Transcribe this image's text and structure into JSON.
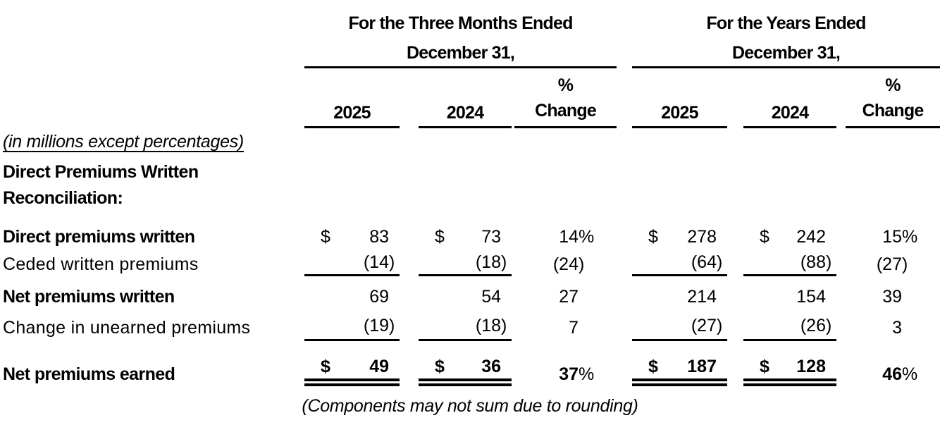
{
  "t": {
    "groups": [
      {
        "title": "For the Three Months Ended",
        "subtitle": "December 31,",
        "cols": {
          "year1": "2025",
          "year2": "2024",
          "pct_top": "%",
          "pct_bottom": "Change"
        }
      },
      {
        "title": "For the Years Ended",
        "subtitle": "December 31,",
        "cols": {
          "year1": "2025",
          "year2": "2024",
          "pct_top": "%",
          "pct_bottom": "Change"
        }
      }
    ],
    "units_note": "(in millions except percentages)",
    "heading": {
      "line1": "Direct Premiums Written",
      "line2": "Reconciliation:"
    },
    "rows": [
      {
        "label": "Direct premiums written",
        "cells": [
          {
            "cur": "$",
            "v": "83"
          },
          {
            "cur": "$",
            "v": "73"
          },
          {
            "v": "14%"
          },
          {
            "cur": "$",
            "v": "278"
          },
          {
            "cur": "$",
            "v": "242"
          },
          {
            "v": "15%"
          }
        ]
      },
      {
        "label": "Ceded written premiums",
        "cells": [
          {
            "v": "(14)"
          },
          {
            "v": "(18)"
          },
          {
            "v": "(24)"
          },
          {
            "v": "(64)"
          },
          {
            "v": "(88)"
          },
          {
            "v": "(27)"
          }
        ]
      },
      {
        "label": "Net premiums written",
        "cells": [
          {
            "v": "69"
          },
          {
            "v": "54"
          },
          {
            "v": "27"
          },
          {
            "v": "214"
          },
          {
            "v": "154"
          },
          {
            "v": "39"
          }
        ]
      },
      {
        "label": "Change in unearned premiums",
        "cells": [
          {
            "v": "(19)"
          },
          {
            "v": "(18)"
          },
          {
            "v": "7"
          },
          {
            "v": "(27)"
          },
          {
            "v": "(26)"
          },
          {
            "v": "3"
          }
        ]
      },
      {
        "label": "Net premiums earned",
        "cells": [
          {
            "cur": "$",
            "v": "49"
          },
          {
            "cur": "$",
            "v": "36"
          },
          {
            "v": "37%"
          },
          {
            "cur": "$",
            "v": "187"
          },
          {
            "cur": "$",
            "v": "128"
          },
          {
            "v": "46%"
          }
        ]
      }
    ],
    "footnote": "(Components may not sum due to rounding)",
    "colors": {
      "text": "#000000",
      "background": "#ffffff"
    }
  }
}
